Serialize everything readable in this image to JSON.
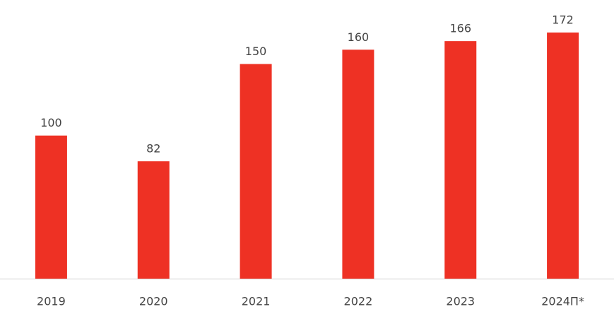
{
  "chart_data": {
    "type": "bar",
    "categories": [
      "2019",
      "2020",
      "2021",
      "2022",
      "2023",
      "2024П*"
    ],
    "values": [
      100,
      82,
      150,
      160,
      166,
      172
    ],
    "color": "#ee3124"
  }
}
